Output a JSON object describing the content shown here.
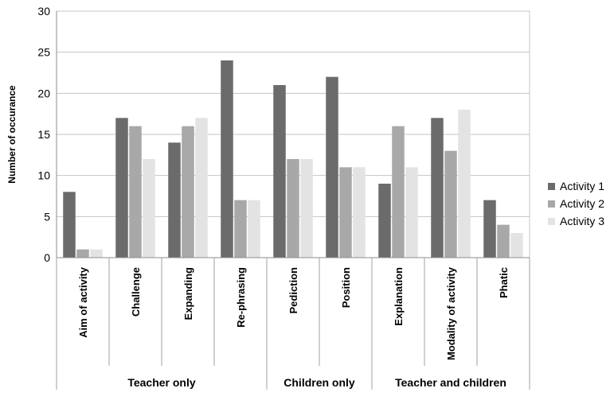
{
  "chart_data": {
    "type": "bar",
    "ylabel": "Number of occurance",
    "xlabel": "",
    "ylim": [
      0,
      30
    ],
    "yticks": [
      0,
      5,
      10,
      15,
      20,
      25,
      30
    ],
    "grid": "horizontal",
    "legend_position": "right",
    "categories": [
      "Aim of activity",
      "Challenge",
      "Expanding",
      "Re-phrasing",
      "Pediction",
      "Position",
      "Explanation",
      "Modality of activity",
      "Phatic"
    ],
    "groups": [
      {
        "label": "Teacher only",
        "count": 4
      },
      {
        "label": "Children only",
        "count": 2
      },
      {
        "label": "Teacher and children",
        "count": 3
      }
    ],
    "series": [
      {
        "name": "Activity 1",
        "color": "#6b6b6b",
        "values": [
          8,
          17,
          14,
          24,
          21,
          22,
          9,
          17,
          7
        ]
      },
      {
        "name": "Activity 2",
        "color": "#a8a8a8",
        "values": [
          1,
          16,
          16,
          7,
          12,
          11,
          16,
          13,
          4
        ]
      },
      {
        "name": "Activity 3",
        "color": "#e3e3e3",
        "values": [
          1,
          12,
          17,
          7,
          12,
          11,
          11,
          18,
          3
        ]
      }
    ]
  }
}
